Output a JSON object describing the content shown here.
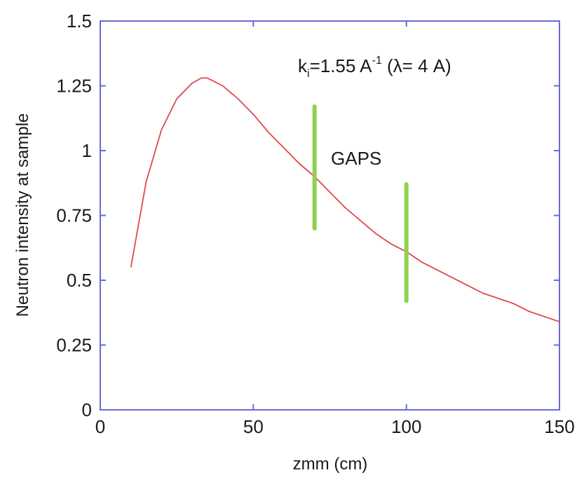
{
  "chart_data": {
    "type": "line",
    "title": "",
    "xlabel": "zmm (cm)",
    "ylabel": "Neutron intensity at sample",
    "xlim": [
      0,
      150
    ],
    "ylim": [
      0,
      1.5
    ],
    "x_ticks": [
      "0",
      "50",
      "100",
      "150"
    ],
    "y_ticks": [
      "0",
      "0.25",
      "0.5",
      "0.75",
      "1",
      "1.25",
      "1.5"
    ],
    "grid": false,
    "series": [
      {
        "color": "#e0474b",
        "x": [
          10,
          15,
          20,
          25,
          30,
          33,
          35,
          40,
          45,
          50,
          55,
          60,
          65,
          70,
          75,
          80,
          85,
          90,
          95,
          100,
          105,
          110,
          115,
          120,
          125,
          130,
          135,
          140,
          145,
          150
        ],
        "y": [
          0.55,
          0.88,
          1.08,
          1.2,
          1.26,
          1.28,
          1.28,
          1.25,
          1.2,
          1.14,
          1.07,
          1.01,
          0.95,
          0.9,
          0.84,
          0.78,
          0.73,
          0.68,
          0.64,
          0.61,
          0.57,
          0.54,
          0.51,
          0.48,
          0.45,
          0.43,
          0.41,
          0.38,
          0.36,
          0.34
        ]
      }
    ],
    "markers": [
      {
        "x": 70,
        "y_from": 0.7,
        "y_to": 1.17,
        "color": "#8fd14f"
      },
      {
        "x": 100,
        "y_from": 0.42,
        "y_to": 0.87,
        "color": "#8fd14f"
      }
    ],
    "annotations": {
      "ki_main": "k",
      "ki_sub": "i",
      "ki_value": "=1.55 A",
      "ki_exp": "-1",
      "ki_lambda": " (λ= 4 A)",
      "gaps": "GAPS"
    },
    "axis_color": "#6a6ad6"
  }
}
